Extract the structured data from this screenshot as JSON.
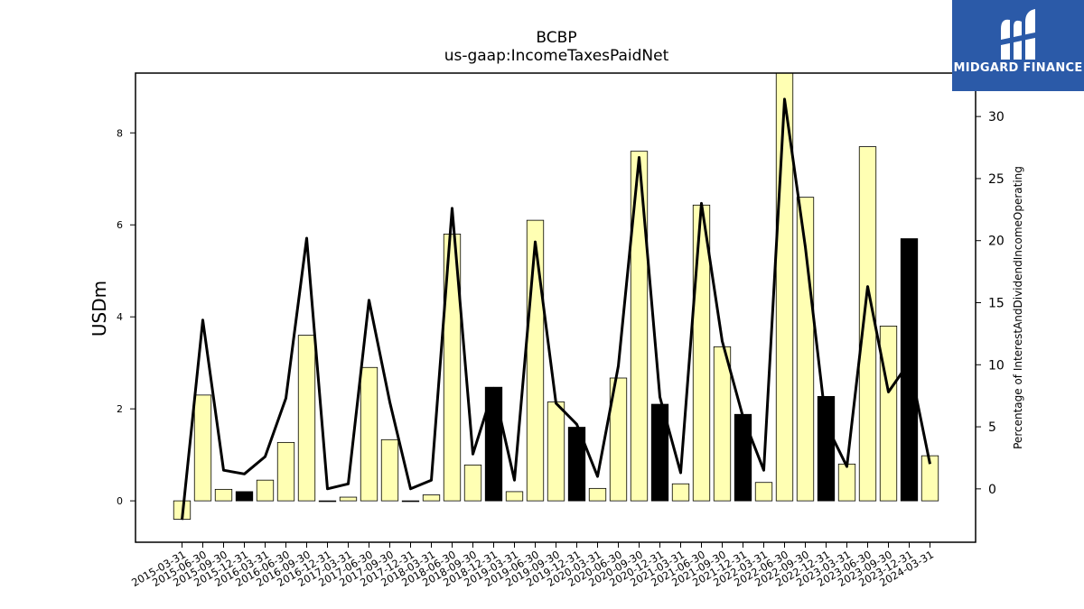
{
  "chart_data": {
    "type": "bar",
    "title": "BCBP",
    "subtitle": "us-gaap:IncomeTaxesPaidNet",
    "ylabel": "USDm",
    "y2label": "Percentage of InterestAndDividendIncomeOperating",
    "ylim": [
      -0.9,
      9.3
    ],
    "y2lim": [
      -4.3,
      33.5
    ],
    "yticks": [
      0,
      2,
      4,
      6,
      8
    ],
    "y2ticks": [
      0,
      5,
      10,
      15,
      20,
      25,
      30
    ],
    "categories": [
      "2015-03-31",
      "2015-06-30",
      "2015-09-30",
      "2015-12-31",
      "2016-03-31",
      "2016-06-30",
      "2016-09-30",
      "2016-12-31",
      "2017-03-31",
      "2017-06-30",
      "2017-09-30",
      "2017-12-31",
      "2018-03-31",
      "2018-06-30",
      "2018-09-30",
      "2018-12-31",
      "2019-03-31",
      "2019-06-30",
      "2019-09-30",
      "2019-12-31",
      "2020-03-31",
      "2020-06-30",
      "2020-09-30",
      "2020-12-31",
      "2021-03-31",
      "2021-06-30",
      "2021-09-30",
      "2021-12-31",
      "2022-03-31",
      "2022-06-30",
      "2022-09-30",
      "2022-12-31",
      "2023-03-31",
      "2023-06-30",
      "2023-09-30",
      "2023-12-31",
      "2024-03-31"
    ],
    "values": [
      -0.4,
      2.3,
      0.25,
      0.2,
      0.45,
      1.27,
      3.6,
      0.0,
      0.08,
      2.9,
      1.33,
      0.0,
      0.13,
      5.8,
      0.78,
      2.47,
      0.2,
      6.1,
      2.15,
      1.6,
      0.27,
      2.67,
      7.6,
      2.1,
      0.37,
      6.43,
      3.35,
      1.88,
      0.4,
      9.3,
      6.6,
      2.27,
      0.8,
      7.7,
      3.8,
      5.7,
      0.98
    ],
    "bar_colors": [
      "#ffffb3",
      "#ffffb3",
      "#ffffb3",
      "#000000",
      "#ffffb3",
      "#ffffb3",
      "#ffffb3",
      "#ffffb3",
      "#ffffb3",
      "#ffffb3",
      "#ffffb3",
      "#ffffb3",
      "#ffffb3",
      "#ffffb3",
      "#ffffb3",
      "#000000",
      "#ffffb3",
      "#ffffb3",
      "#ffffb3",
      "#000000",
      "#ffffb3",
      "#ffffb3",
      "#ffffb3",
      "#000000",
      "#ffffb3",
      "#ffffb3",
      "#ffffb3",
      "#000000",
      "#ffffb3",
      "#ffffb3",
      "#ffffb3",
      "#000000",
      "#ffffb3",
      "#ffffb3",
      "#ffffb3",
      "#000000",
      "#ffffb3"
    ],
    "series": [
      {
        "values": [
          -2.5,
          13.6,
          1.5,
          1.2,
          2.6,
          7.3,
          20.2,
          0.0,
          0.4,
          15.2,
          7.0,
          0.0,
          0.7,
          22.6,
          2.8,
          8.1,
          0.7,
          19.9,
          6.9,
          5.2,
          1.0,
          9.9,
          26.7,
          7.4,
          1.3,
          23.0,
          11.9,
          5.8,
          1.5,
          31.4,
          19.5,
          5.2,
          1.8,
          16.3,
          7.8,
          10.2,
          2.0
        ]
      }
    ]
  },
  "logo": {
    "text": "MIDGARD FINANCE"
  }
}
